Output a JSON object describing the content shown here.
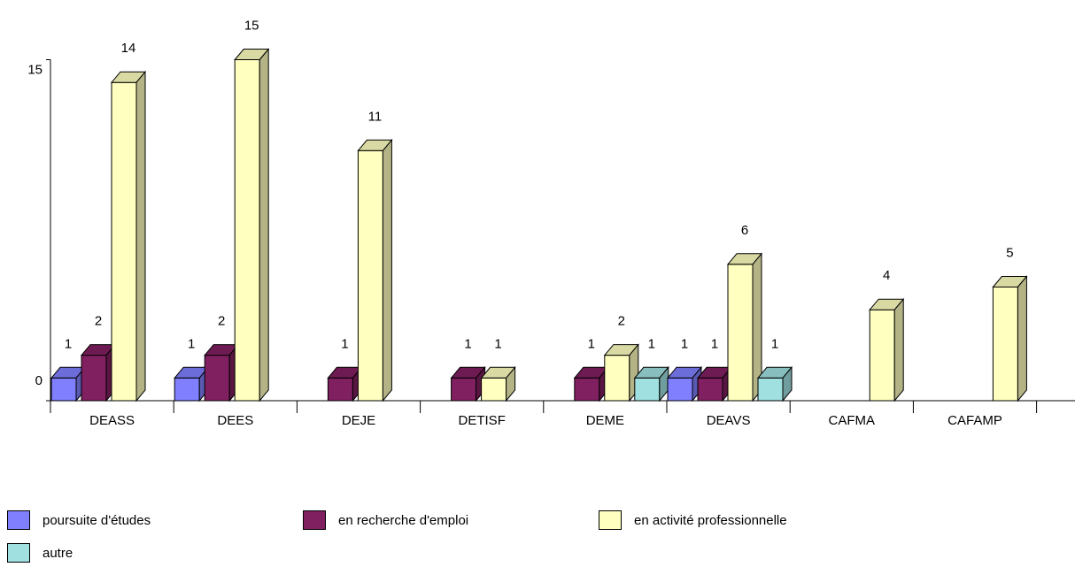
{
  "chart_data": {
    "type": "bar",
    "categories": [
      "DEASS",
      "DEES",
      "DEJE",
      "DETISF",
      "DEME",
      "DEAVS",
      "CAFMA",
      "CAFAMP"
    ],
    "series": [
      {
        "name": "poursuite d'études",
        "color": "#8080ff",
        "values": [
          1,
          1,
          null,
          null,
          null,
          1,
          null,
          null
        ]
      },
      {
        "name": "en recherche d'emploi",
        "color": "#802060",
        "values": [
          2,
          2,
          1,
          1,
          1,
          1,
          null,
          null
        ]
      },
      {
        "name": "en activité professionnelle",
        "color": "#ffffc0",
        "values": [
          14,
          15,
          11,
          1,
          2,
          6,
          4,
          5
        ]
      },
      {
        "name": "autre",
        "color": "#a0e0e0",
        "values": [
          null,
          null,
          null,
          null,
          1,
          1,
          null,
          null
        ]
      }
    ],
    "yticks": [
      0,
      15
    ],
    "ylim": [
      0,
      16
    ],
    "legend_position": "bottom",
    "grid": false
  }
}
